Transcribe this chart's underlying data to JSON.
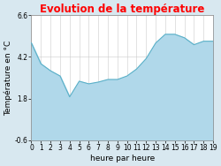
{
  "title": "Evolution de la température",
  "title_color": "#ff0000",
  "xlabel": "heure par heure",
  "ylabel": "Température en °C",
  "background_color": "#d8e8f0",
  "plot_bg_color": "#ffffff",
  "fill_color": "#b0d8ea",
  "line_color": "#5ab0c8",
  "ylim": [
    -0.6,
    6.6
  ],
  "yticks": [
    -0.6,
    1.8,
    4.2,
    6.6
  ],
  "hours": [
    0,
    1,
    2,
    3,
    4,
    5,
    6,
    7,
    8,
    9,
    10,
    11,
    12,
    13,
    14,
    15,
    16,
    17,
    18,
    19
  ],
  "values": [
    5.0,
    3.8,
    3.4,
    3.1,
    1.9,
    2.8,
    2.65,
    2.75,
    2.9,
    2.9,
    3.1,
    3.5,
    4.1,
    5.0,
    5.5,
    5.5,
    5.3,
    4.9,
    5.1,
    5.1
  ],
  "xtick_labels": [
    "0",
    "1",
    "2",
    "3",
    "4",
    "5",
    "6",
    "7",
    "8",
    "9",
    "10",
    "11",
    "12",
    "13",
    "14",
    "15",
    "16",
    "17",
    "18",
    "19"
  ],
  "grid_color": "#cccccc",
  "font_size_title": 8.5,
  "font_size_labels": 6.5,
  "font_size_ticks": 5.5
}
